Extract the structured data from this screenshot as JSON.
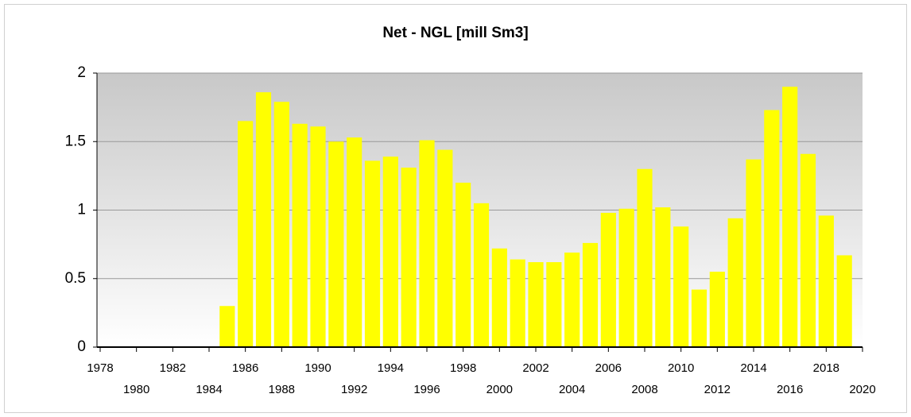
{
  "chart_data": {
    "type": "bar",
    "title": "Net - NGL [mill Sm3]",
    "x": [
      1985,
      1986,
      1987,
      1988,
      1989,
      1990,
      1991,
      1992,
      1993,
      1994,
      1995,
      1996,
      1997,
      1998,
      1999,
      2000,
      2001,
      2002,
      2003,
      2004,
      2005,
      2006,
      2007,
      2008,
      2009,
      2010,
      2011,
      2012,
      2013,
      2014,
      2015,
      2016,
      2017,
      2018,
      2019
    ],
    "values": [
      0.3,
      1.65,
      1.86,
      1.79,
      1.63,
      1.61,
      1.5,
      1.53,
      1.36,
      1.39,
      1.31,
      1.51,
      1.44,
      1.2,
      1.05,
      0.72,
      0.64,
      0.62,
      0.62,
      0.69,
      0.76,
      0.98,
      1.01,
      1.3,
      1.02,
      0.88,
      0.42,
      0.55,
      0.94,
      1.37,
      1.73,
      1.9,
      1.41,
      0.96,
      0.67
    ],
    "color": "#ffff00",
    "xlim": [
      1978,
      2020
    ],
    "xticks": [
      1978,
      1980,
      1982,
      1984,
      1986,
      1988,
      1990,
      1992,
      1994,
      1996,
      1998,
      2000,
      2002,
      2004,
      2006,
      2008,
      2010,
      2012,
      2014,
      2016,
      2018,
      2020
    ],
    "ylim": [
      0,
      2
    ],
    "yticks": [
      0,
      0.5,
      1,
      1.5,
      2
    ],
    "grid": true
  }
}
